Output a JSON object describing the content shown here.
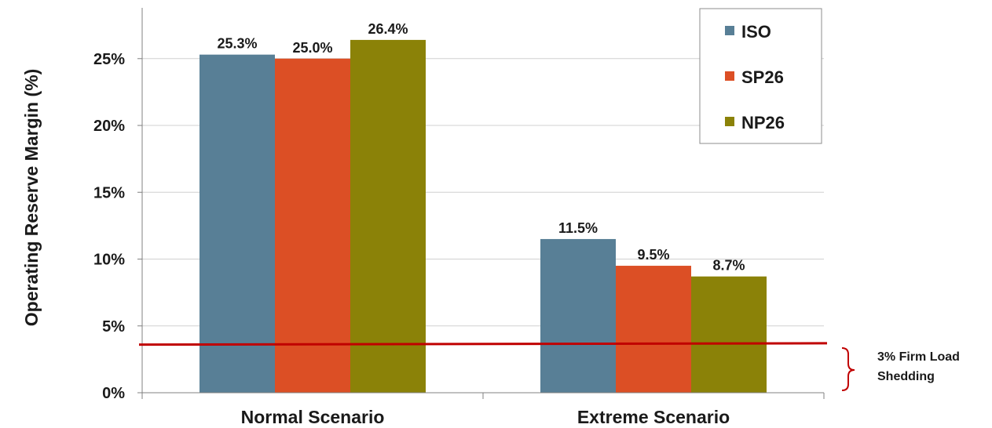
{
  "chart_data": {
    "type": "bar",
    "categories": [
      "Normal Scenario",
      "Extreme Scenario"
    ],
    "series": [
      {
        "name": "ISO",
        "values": [
          25.3,
          11.5
        ],
        "labels": [
          "25.3%",
          "11.5%"
        ],
        "color": "#587f96"
      },
      {
        "name": "SP26",
        "values": [
          25.0,
          9.5
        ],
        "labels": [
          "25.0%",
          "9.5%"
        ],
        "color": "#dc4f25"
      },
      {
        "name": "NP26",
        "values": [
          26.4,
          8.7
        ],
        "labels": [
          "26.4%",
          "8.7%"
        ],
        "color": "#8b8208"
      }
    ],
    "ylabel": "Operating Reserve Margin (%)",
    "ylim": [
      0,
      28.8
    ],
    "yticks": [
      0,
      5,
      10,
      15,
      20,
      25
    ],
    "ytick_labels": [
      "0%",
      "5%",
      "10%",
      "15%",
      "20%",
      "25%"
    ],
    "grid": true,
    "legend_position": "top-right",
    "threshold": {
      "value_start": 3.6,
      "value_end": 3.7,
      "color": "#c00000",
      "annotation_lines": [
        "3% Firm Load",
        "Shedding"
      ]
    }
  }
}
